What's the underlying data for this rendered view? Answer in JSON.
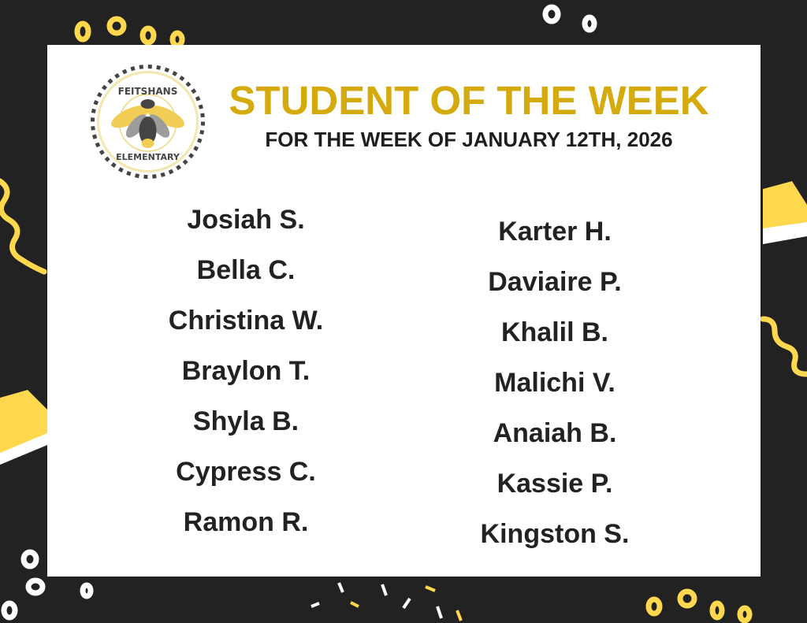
{
  "logo": {
    "top_text": "FEITSHANS",
    "bottom_text": "ELEMENTARY",
    "icon": "firefly-icon"
  },
  "header": {
    "title": "STUDENT OF THE WEEK",
    "subtitle": "FOR THE WEEK OF JANUARY 12TH, 2026"
  },
  "students": {
    "left": [
      "Josiah S.",
      "Bella C.",
      "Christina W.",
      "Braylon T.",
      "Shyla B.",
      "Cypress C.",
      "Ramon R."
    ],
    "right": [
      "Karter H.",
      "Daviaire P.",
      "Khalil B.",
      "Malichi V.",
      "Anaiah B.",
      "Kassie P.",
      "Kingston S."
    ]
  },
  "colors": {
    "accent": "#D4AA0C",
    "background": "#222222",
    "card": "#ffffff",
    "decor_yellow": "#FFD84D"
  }
}
